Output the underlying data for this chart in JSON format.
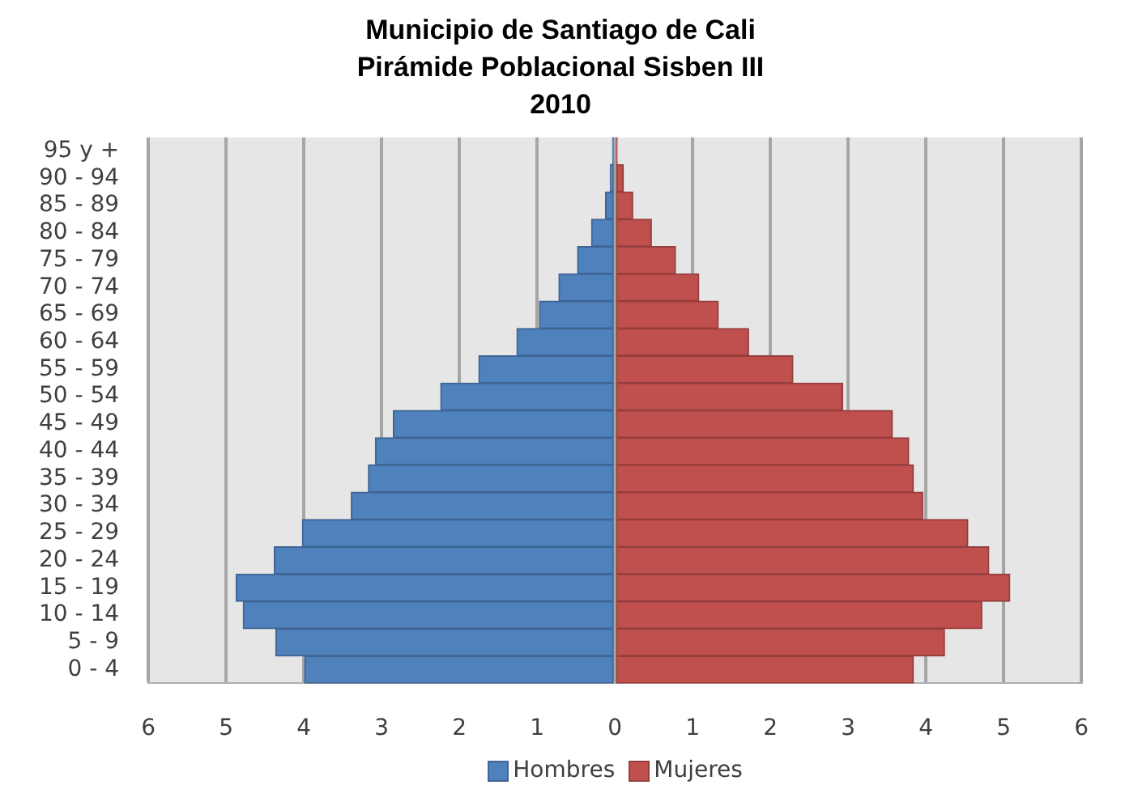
{
  "chart_data": {
    "type": "bar",
    "orientation": "horizontal",
    "stacked": true,
    "title": "Municipio de Santiago de Cali\nPirámide Poblacional Sisben III\n2010",
    "categories": [
      "95 y +",
      "90 - 94",
      "85 - 89",
      "80 - 84",
      "75 - 79",
      "70 - 74",
      "65 - 69",
      "60 - 64",
      "55 - 59",
      "50 - 54",
      "45 - 49",
      "40 - 44",
      "35 - 39",
      "30 - 34",
      "25 - 29",
      "20 - 24",
      "15 - 19",
      "10 - 14",
      "5 - 9",
      "0 - 4"
    ],
    "series": [
      {
        "name": "Hombres",
        "color": "#4f81bd",
        "values": [
          -0.03,
          -0.06,
          -0.12,
          -0.3,
          -0.48,
          -0.72,
          -0.97,
          -1.26,
          -1.75,
          -2.24,
          -2.85,
          -3.08,
          -3.17,
          -3.39,
          -4.02,
          -4.38,
          -4.87,
          -4.78,
          -4.36,
          -3.99
        ]
      },
      {
        "name": "Mujeres",
        "color": "#c0504d",
        "values": [
          0.03,
          0.11,
          0.23,
          0.47,
          0.78,
          1.08,
          1.33,
          1.72,
          2.29,
          2.93,
          3.57,
          3.78,
          3.84,
          3.96,
          4.54,
          4.81,
          5.08,
          4.72,
          4.24,
          3.84
        ]
      }
    ],
    "xlim": [
      -6,
      6
    ],
    "xticks": [
      {
        "value": -6,
        "label": "6"
      },
      {
        "value": -5,
        "label": "5"
      },
      {
        "value": -4,
        "label": "4"
      },
      {
        "value": -3,
        "label": "3"
      },
      {
        "value": -2,
        "label": "2"
      },
      {
        "value": -1,
        "label": "1"
      },
      0,
      1,
      2,
      3,
      4,
      5,
      6
    ],
    "grid": "x",
    "legend": "bottom"
  }
}
